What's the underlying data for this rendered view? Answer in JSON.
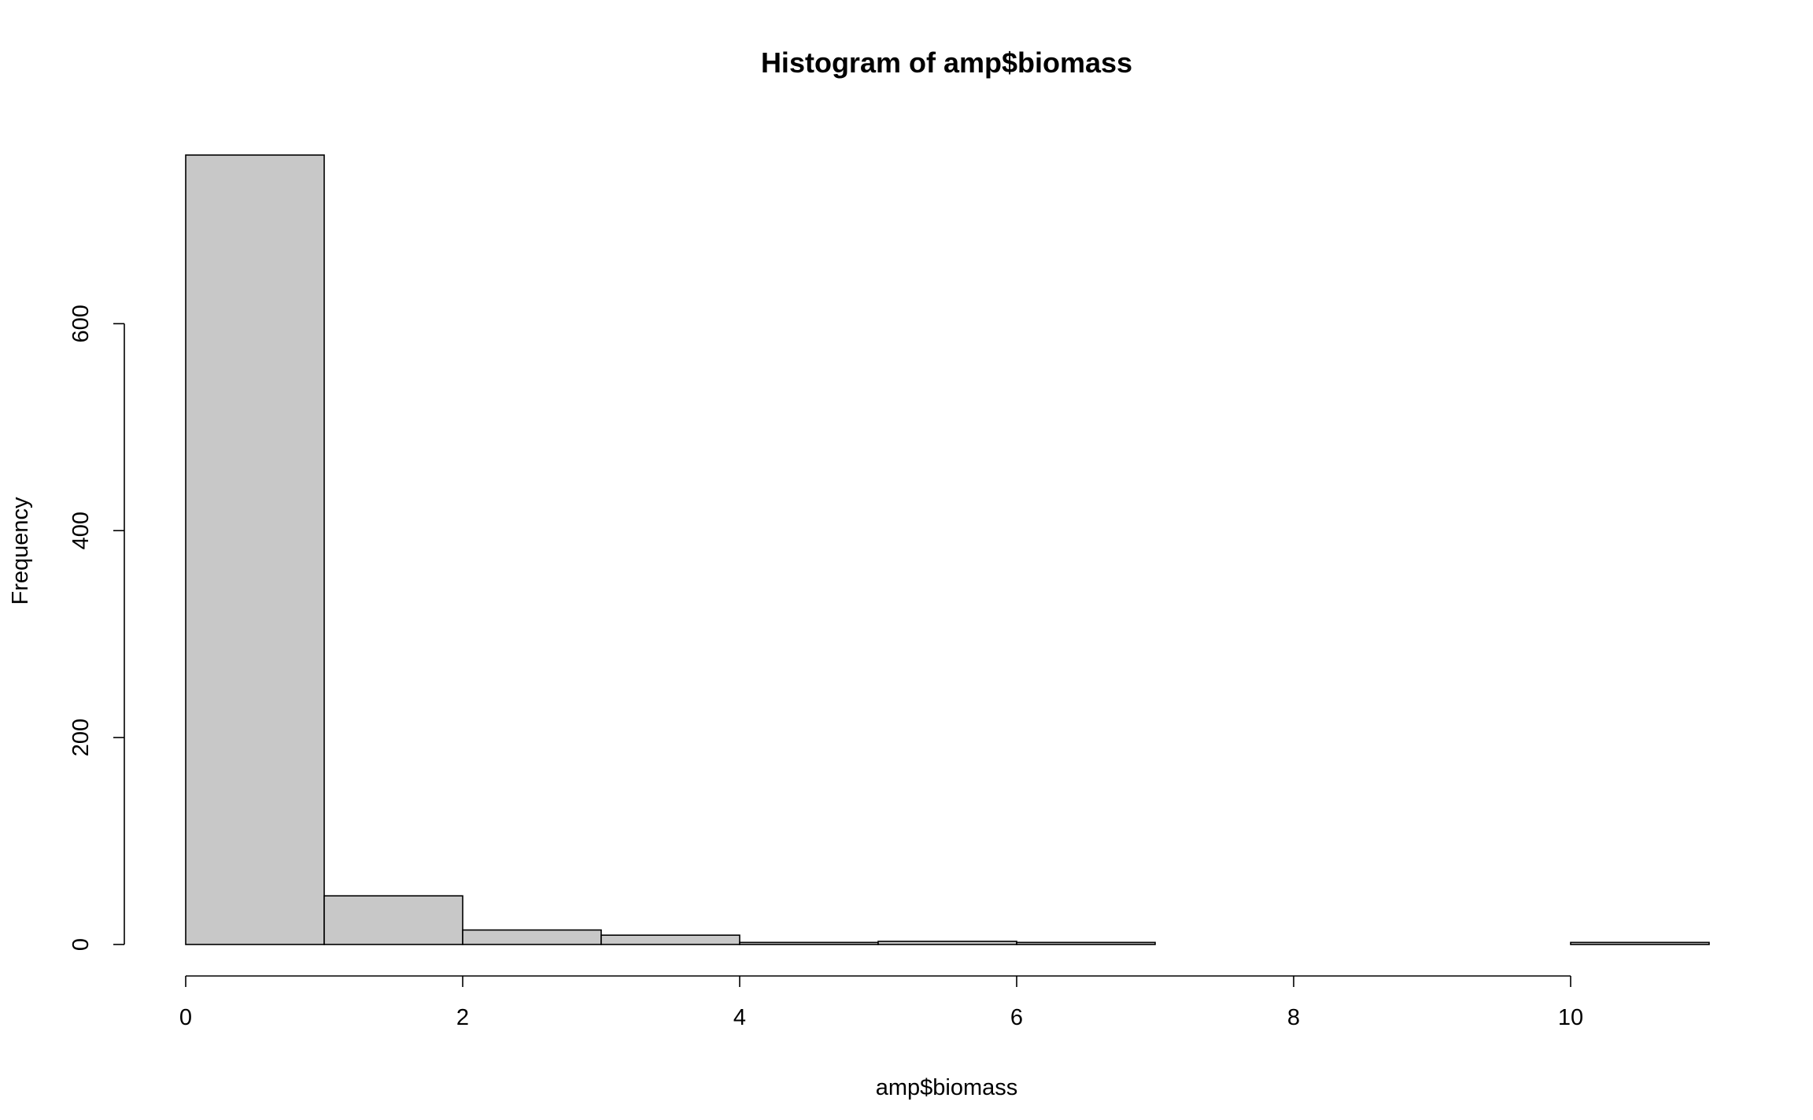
{
  "chart_data": {
    "type": "bar",
    "title": "Histogram of amp$biomass",
    "xlabel": "amp$biomass",
    "ylabel": "Frequency",
    "bins": [
      {
        "start": 0,
        "end": 1,
        "count": 763
      },
      {
        "start": 1,
        "end": 2,
        "count": 47
      },
      {
        "start": 2,
        "end": 3,
        "count": 14
      },
      {
        "start": 3,
        "end": 4,
        "count": 9
      },
      {
        "start": 4,
        "end": 5,
        "count": 2
      },
      {
        "start": 5,
        "end": 6,
        "count": 3
      },
      {
        "start": 6,
        "end": 7,
        "count": 2
      },
      {
        "start": 7,
        "end": 8,
        "count": 0
      },
      {
        "start": 8,
        "end": 9,
        "count": 0
      },
      {
        "start": 9,
        "end": 10,
        "count": 0
      },
      {
        "start": 10,
        "end": 11,
        "count": 2
      }
    ],
    "xlim": [
      0,
      11
    ],
    "ylim": [
      0,
      763
    ],
    "xticks": [
      0,
      2,
      4,
      6,
      8,
      10
    ],
    "yticks": [
      0,
      200,
      400,
      600
    ],
    "grid": false,
    "legend": "none",
    "bar_color": "#c8c8c8"
  }
}
